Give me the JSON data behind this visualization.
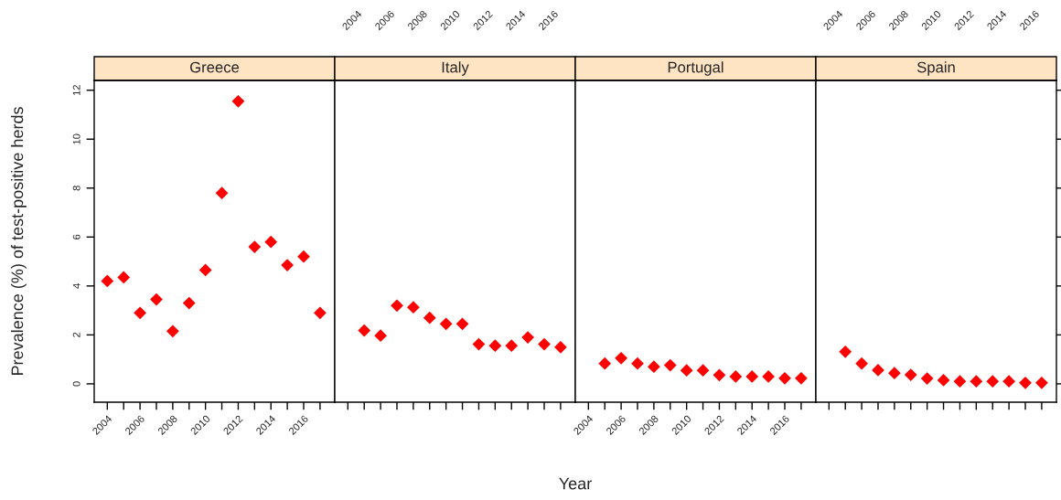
{
  "chart_data": [
    {
      "type": "scatter",
      "title": "Greece",
      "ylabel": "Prevalence (%) of test-positive herds",
      "marker": "diamond",
      "grid": false,
      "x": [
        2004,
        2005,
        2006,
        2007,
        2008,
        2009,
        2010,
        2011,
        2012,
        2013,
        2014,
        2015,
        2016,
        2017
      ],
      "series": [
        {
          "color": "#ff0000",
          "values": [
            4.2,
            4.35,
            2.9,
            3.45,
            2.15,
            3.3,
            4.65,
            7.8,
            11.55,
            5.6,
            5.8,
            4.85,
            5.2,
            2.9
          ]
        }
      ],
      "xlim": [
        2003.2,
        2017.9
      ],
      "ylim": [
        -0.75,
        12.4
      ],
      "xticks": [
        2004,
        {
          "value": 2005,
          "label": null
        },
        2006,
        {
          "value": 2007,
          "label": null
        },
        2008,
        {
          "value": 2009,
          "label": null
        },
        2010,
        {
          "value": 2011,
          "label": null
        },
        2012,
        {
          "value": 2013,
          "label": null
        },
        2014,
        {
          "value": 2015,
          "label": null
        },
        2016,
        {
          "value": 2017,
          "label": null
        }
      ],
      "yticks": [
        0,
        2,
        4,
        6,
        8,
        10,
        12
      ]
    },
    {
      "type": "scatter",
      "title": "Italy",
      "xlabel": "Year",
      "marker": "diamond",
      "grid": false,
      "tick_labels": "x",
      "x": [
        2005,
        2006,
        2007,
        2008,
        2009,
        2010,
        2011,
        2012,
        2013,
        2014,
        2015,
        2016,
        2017
      ],
      "series": [
        {
          "color": "#ff0000",
          "values": [
            2.18,
            1.97,
            3.2,
            3.13,
            2.7,
            2.45,
            2.45,
            1.62,
            1.56,
            1.56,
            1.9,
            1.62,
            1.5
          ]
        }
      ],
      "ylim": [
        -0.75,
        12.4
      ],
      "xlim": [
        2003.2,
        2017.9
      ],
      "xticks": [
        2004,
        {
          "value": 2005,
          "label": null
        },
        2006,
        {
          "value": 2007,
          "label": null
        },
        2008,
        {
          "value": 2009,
          "label": null
        },
        2010,
        {
          "value": 2011,
          "label": null
        },
        2012,
        {
          "value": 2013,
          "label": null
        },
        2014,
        {
          "value": 2015,
          "label": null
        },
        2016,
        {
          "value": 2017,
          "label": null
        }
      ]
    },
    {
      "type": "scatter",
      "title": "Portugal",
      "marker": "diamond",
      "grid": false,
      "tick_labels": "x",
      "x": [
        2005,
        2006,
        2007,
        2008,
        2009,
        2010,
        2011,
        2012,
        2013,
        2014,
        2015,
        2016,
        2017
      ],
      "series": [
        {
          "color": "#ff0000",
          "values": [
            0.83,
            1.05,
            0.83,
            0.7,
            0.76,
            0.55,
            0.55,
            0.36,
            0.3,
            0.3,
            0.3,
            0.23,
            0.23
          ]
        }
      ],
      "xlim": [
        2003.2,
        2017.9
      ],
      "ylim": [
        -0.75,
        12.4
      ],
      "xticks": [
        2004,
        {
          "value": 2005,
          "label": null
        },
        2006,
        {
          "value": 2007,
          "label": null
        },
        2008,
        {
          "value": 2009,
          "label": null
        },
        2010,
        {
          "value": 2011,
          "label": null
        },
        2012,
        {
          "value": 2013,
          "label": null
        },
        2014,
        {
          "value": 2015,
          "label": null
        },
        2016,
        {
          "value": 2017,
          "label": null
        }
      ]
    },
    {
      "type": "scatter",
      "title": "Spain",
      "marker": "diamond",
      "grid": false,
      "tick_labels": "x",
      "x": [
        2005,
        2006,
        2007,
        2008,
        2009,
        2010,
        2011,
        2012,
        2013,
        2014,
        2015,
        2016,
        2017
      ],
      "series": [
        {
          "color": "#ff0000",
          "values": [
            1.31,
            0.83,
            0.56,
            0.44,
            0.37,
            0.22,
            0.15,
            0.1,
            0.1,
            0.1,
            0.1,
            0.04,
            0.04
          ]
        }
      ],
      "ylim": [
        -0.75,
        12.4
      ],
      "xlim": [
        2003.2,
        2017.9
      ],
      "xticks": [
        2004,
        {
          "value": 2005,
          "label": null
        },
        2006,
        {
          "value": 2007,
          "label": null
        },
        2008,
        {
          "value": 2009,
          "label": null
        },
        2010,
        {
          "value": 2011,
          "label": null
        },
        2012,
        {
          "value": 2013,
          "label": null
        },
        2014,
        {
          "value": 2015,
          "label": null
        },
        2016,
        {
          "value": 2017,
          "label": null
        }
      ]
    }
  ]
}
